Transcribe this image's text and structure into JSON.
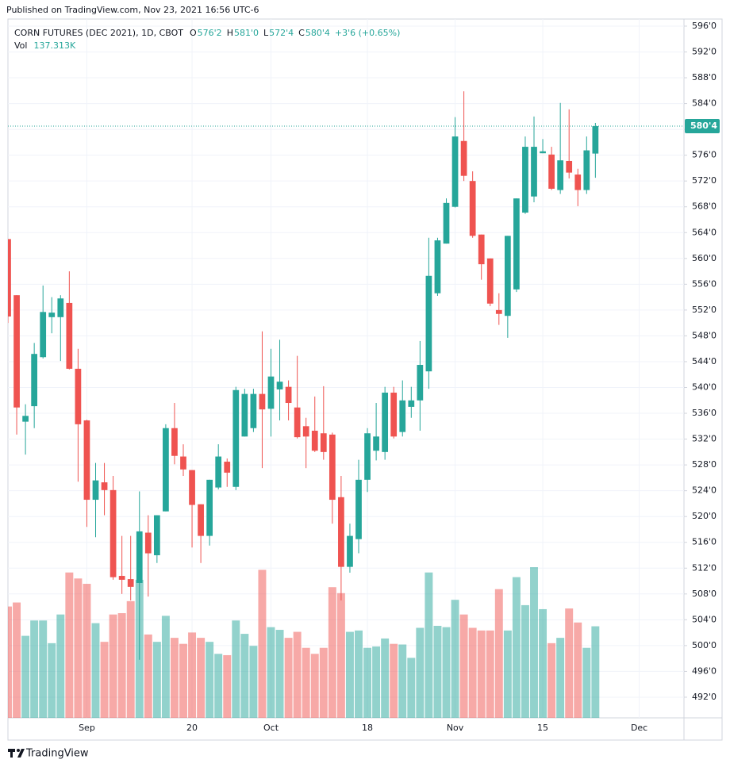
{
  "header": {
    "published": "Published on TradingView.com, Nov 23, 2021 16:56 UTC-6"
  },
  "footer": {
    "brand": "TradingView"
  },
  "chart_data": {
    "type": "candlestick",
    "title": "CORN FUTURES (DEC 2021), 1D, CBOT",
    "ohlc_legend": [
      {
        "key": "O",
        "label": "576'2"
      },
      {
        "key": "H",
        "label": "581'0"
      },
      {
        "key": "L",
        "label": "572'4"
      },
      {
        "key": "C",
        "label": "580'4"
      }
    ],
    "change_label": "+3'6 (+0.65%)",
    "volume_legend": {
      "key": "Vol",
      "label": "137.313K"
    },
    "up_color": "#26a69a",
    "down_color": "#ef5350",
    "categories": [
      null,
      null,
      null,
      null,
      null,
      null,
      null,
      null,
      null,
      "Sep",
      null,
      null,
      null,
      null,
      null,
      null,
      null,
      null,
      null,
      null,
      null,
      "20",
      null,
      null,
      null,
      null,
      null,
      null,
      null,
      null,
      "Oct",
      null,
      null,
      null,
      null,
      null,
      null,
      null,
      null,
      null,
      null,
      "18",
      null,
      null,
      null,
      null,
      null,
      null,
      null,
      null,
      null,
      "Nov",
      null,
      null,
      null,
      null,
      null,
      null,
      null,
      null,
      null,
      "15",
      null,
      null,
      null,
      null,
      null,
      null,
      null,
      null,
      null,
      null,
      "Dec",
      null,
      null,
      null,
      null,
      null
    ],
    "series": [
      {
        "name": "open",
        "values": [
          563,
          554.3,
          534.7,
          537.1,
          544.7,
          550.9,
          550.9,
          553.1,
          542.9,
          534.9,
          522.6,
          525.3,
          524.1,
          510.8,
          510.3,
          509.7,
          517.5,
          514,
          520.8,
          533.7,
          529.3,
          527.2,
          521.9,
          517,
          524.5,
          528.5,
          524.6,
          532.4,
          533.7,
          539,
          536.7,
          539.7,
          540.1,
          536.9,
          534,
          533.3,
          532.9,
          532.7,
          523,
          512.2,
          516.5,
          525.7,
          530.2,
          530,
          539.2,
          533.1,
          537,
          538,
          542.5,
          554.6,
          562.3,
          568,
          578.2,
          572,
          563.7,
          560,
          552,
          551.1,
          555.2,
          567.1,
          569.6,
          576.3,
          576.1,
          570.6,
          575.1,
          573,
          570.6,
          576.25,
          null,
          null,
          null,
          null,
          null,
          null,
          null,
          null,
          null,
          null
        ]
      },
      {
        "name": "high",
        "values": [
          563,
          554.3,
          537.4,
          546.9,
          555.8,
          554,
          554.3,
          558,
          546,
          535,
          528.3,
          528.3,
          526.3,
          517,
          517,
          523.9,
          520.2,
          520.2,
          534.3,
          537.6,
          531.2,
          527.2,
          521.9,
          525.7,
          531.2,
          529,
          540.1,
          539.8,
          539.8,
          548.7,
          546,
          547.4,
          541.1,
          544.9,
          535.3,
          538.6,
          540.2,
          533,
          526.3,
          518.9,
          528.8,
          533.7,
          537.6,
          540.1,
          540.1,
          541.1,
          540.1,
          547.2,
          563.2,
          563.2,
          569.3,
          581.9,
          585.9,
          573.5,
          563.7,
          560,
          554.6,
          563.5,
          569.3,
          578.9,
          582,
          578.5,
          577.3,
          584.1,
          583.1,
          573.9,
          578.9,
          581,
          null,
          null,
          null,
          null,
          null,
          null,
          null,
          null,
          null,
          null
        ]
      },
      {
        "name": "low",
        "values": [
          550,
          532.7,
          529.6,
          533.7,
          544.5,
          548.4,
          544.1,
          542.8,
          525.4,
          518.4,
          516.8,
          520.2,
          510.2,
          508,
          507,
          497.8,
          507.6,
          512.8,
          520.8,
          528.1,
          526.3,
          515.2,
          512.8,
          515.5,
          524.2,
          524.6,
          524.1,
          532.4,
          533.1,
          527.5,
          532.4,
          534.9,
          534.9,
          532.1,
          527.5,
          530,
          528.8,
          518.9,
          507,
          511.3,
          514.3,
          523.8,
          528.7,
          528.8,
          532.1,
          532.4,
          535.3,
          533.3,
          539.8,
          554.2,
          562.3,
          567.9,
          572,
          563.2,
          556.7,
          552.6,
          549.7,
          547.7,
          554.8,
          566.9,
          568.7,
          576.3,
          570.6,
          570,
          572.4,
          568.1,
          570,
          572.5,
          null,
          null,
          null,
          null,
          null,
          null,
          null,
          null,
          null,
          null
        ]
      },
      {
        "name": "close",
        "values": [
          551,
          536.9,
          535.6,
          545.2,
          551.7,
          551.6,
          553.8,
          542.9,
          534.3,
          522.6,
          525.6,
          524.1,
          510.6,
          510.2,
          509.1,
          517.7,
          514.3,
          520.2,
          533.7,
          529.4,
          527.3,
          521.8,
          517,
          525.7,
          529.3,
          526.8,
          539.6,
          539,
          539,
          536.6,
          541.7,
          540.9,
          537.6,
          532.3,
          532.4,
          530.2,
          530,
          522.6,
          512.2,
          517,
          525.7,
          532.9,
          532.4,
          539.2,
          532.4,
          538,
          538,
          543.5,
          557.3,
          562.8,
          568.6,
          578.9,
          572.8,
          563.5,
          559.1,
          553,
          551.4,
          563.5,
          569.3,
          577.3,
          577.3,
          576.6,
          570.8,
          575.2,
          573.3,
          570.6,
          576.75,
          580.5,
          null,
          null,
          null,
          null,
          null,
          null,
          null,
          null,
          null,
          null
        ]
      },
      {
        "name": "volume",
        "values": [
          167000,
          173000,
          123000,
          146000,
          146000,
          112000,
          155000,
          218000,
          209000,
          201000,
          142000,
          114000,
          155000,
          157000,
          175000,
          207000,
          125000,
          114000,
          153000,
          120000,
          111000,
          128000,
          120000,
          114000,
          96000,
          94000,
          146000,
          126000,
          108000,
          222000,
          136000,
          132000,
          120000,
          129000,
          105000,
          96000,
          105000,
          196000,
          187000,
          129000,
          131000,
          105000,
          107000,
          119000,
          111000,
          110000,
          90000,
          135000,
          218000,
          138000,
          136000,
          177000,
          155000,
          135000,
          131000,
          131000,
          193000,
          131000,
          211000,
          169000,
          226000,
          163000,
          112000,
          120000,
          164000,
          143000,
          105000,
          137313,
          null,
          null,
          null,
          null,
          null,
          null,
          null,
          null,
          null,
          null
        ]
      }
    ],
    "last_price": {
      "value": 580.5,
      "label": "580'4"
    },
    "ylim": [
      488.8,
      597.1
    ],
    "yticks": [
      {
        "value": 596,
        "label": "596'0"
      },
      {
        "value": 592,
        "label": "592'0"
      },
      {
        "value": 588,
        "label": "588'0"
      },
      {
        "value": 584,
        "label": "584'0"
      },
      {
        "value": 580,
        "label": "580'0"
      },
      {
        "value": 576,
        "label": "576'0"
      },
      {
        "value": 572,
        "label": "572'0"
      },
      {
        "value": 568,
        "label": "568'0"
      },
      {
        "value": 564,
        "label": "564'0"
      },
      {
        "value": 560,
        "label": "560'0"
      },
      {
        "value": 556,
        "label": "556'0"
      },
      {
        "value": 552,
        "label": "552'0"
      },
      {
        "value": 548,
        "label": "548'0"
      },
      {
        "value": 544,
        "label": "544'0"
      },
      {
        "value": 540,
        "label": "540'0"
      },
      {
        "value": 536,
        "label": "536'0"
      },
      {
        "value": 532,
        "label": "532'0"
      },
      {
        "value": 528,
        "label": "528'0"
      },
      {
        "value": 524,
        "label": "524'0"
      },
      {
        "value": 520,
        "label": "520'0"
      },
      {
        "value": 516,
        "label": "516'0"
      },
      {
        "value": 512,
        "label": "512'0"
      },
      {
        "value": 508,
        "label": "508'0"
      },
      {
        "value": 504,
        "label": "504'0"
      },
      {
        "value": 500,
        "label": "500'0"
      },
      {
        "value": 496,
        "label": "496'0"
      },
      {
        "value": 492,
        "label": "492'0"
      }
    ],
    "grid": true
  }
}
